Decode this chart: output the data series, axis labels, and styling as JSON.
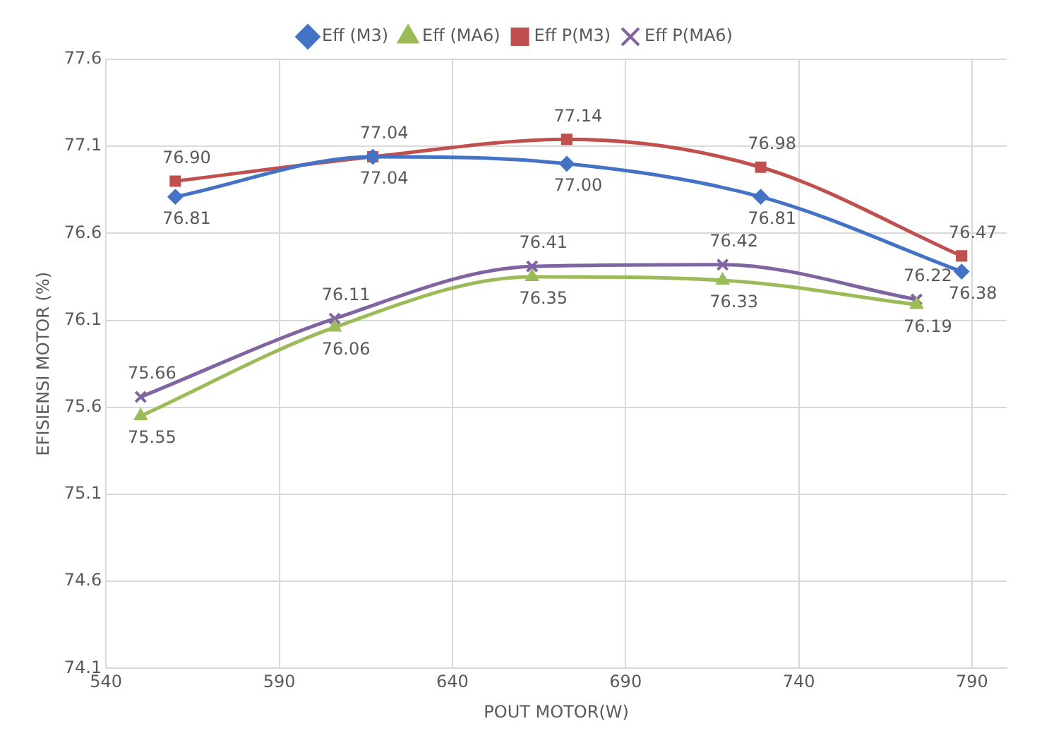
{
  "chart_data": {
    "type": "line",
    "xlabel": "POUT MOTOR(W)",
    "ylabel": "EFISIENSI MOTOR (%)",
    "xlim": [
      540,
      800
    ],
    "xticks": [
      540,
      590,
      640,
      690,
      740,
      790
    ],
    "ylim": [
      74.1,
      77.6
    ],
    "yticks": [
      74.1,
      74.6,
      75.1,
      75.6,
      76.1,
      76.6,
      77.1,
      77.6
    ],
    "grid": true,
    "legend": "top",
    "line_style": "solid",
    "series": [
      {
        "name": "Eff (M3)",
        "color": "#4472c4",
        "marker": "diamond",
        "x": [
          560,
          617,
          673,
          729,
          787
        ],
        "values": [
          76.81,
          77.04,
          77.0,
          76.81,
          76.38
        ],
        "value_labels": [
          "76.81",
          "77.04",
          "77.00",
          "76.81",
          "76.38"
        ]
      },
      {
        "name": "Eff (MA6)",
        "color": "#9bbb59",
        "marker": "triangle",
        "x": [
          550,
          606,
          663,
          718,
          774
        ],
        "values": [
          75.55,
          76.06,
          76.35,
          76.33,
          76.19
        ],
        "value_labels": [
          "75.55",
          "76.06",
          "76.35",
          "76.33",
          "76.19"
        ]
      },
      {
        "name": "Eff P(M3)",
        "color": "#c0504d",
        "marker": "square",
        "x": [
          560,
          617,
          673,
          729,
          787
        ],
        "values": [
          76.9,
          77.04,
          77.14,
          76.98,
          76.47
        ],
        "value_labels": [
          "76.90",
          "77.04",
          "77.14",
          "76.98",
          "76.47"
        ]
      },
      {
        "name": "Eff P(MA6)",
        "color": "#8064a2",
        "marker": "cross",
        "x": [
          550,
          606,
          663,
          718,
          774
        ],
        "values": [
          75.66,
          76.11,
          76.41,
          76.42,
          76.22
        ],
        "value_labels": [
          "75.66",
          "76.11",
          "76.41",
          "76.42",
          "76.22"
        ]
      }
    ]
  }
}
